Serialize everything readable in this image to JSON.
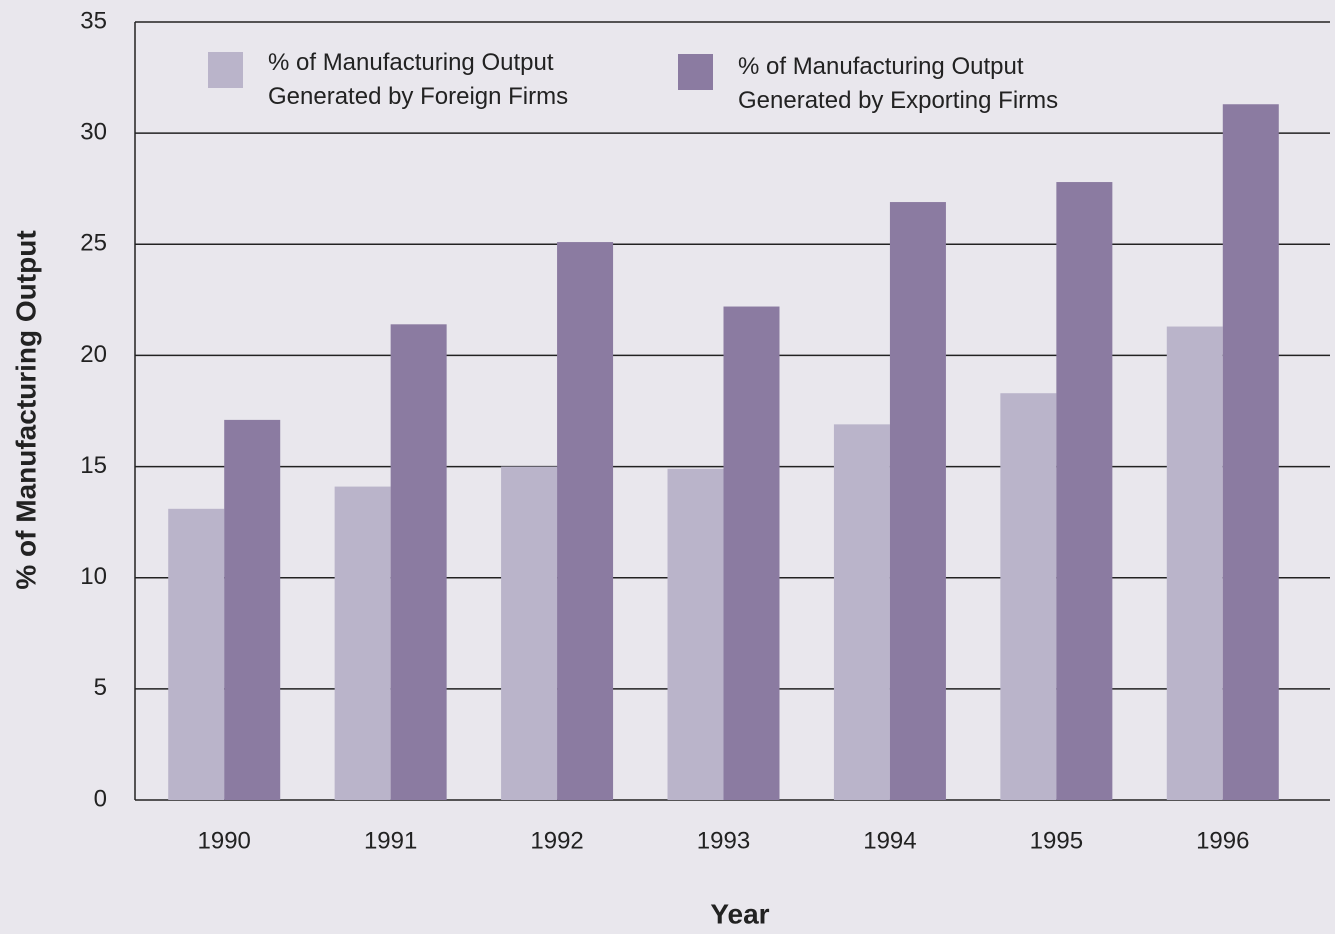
{
  "chart_data": {
    "type": "bar",
    "x_label": "Year",
    "y_label": "% of Manufacturing Output",
    "categories": [
      "1990",
      "1991",
      "1992",
      "1993",
      "1994",
      "1995",
      "1996"
    ],
    "series": [
      {
        "name": "% of Manufacturing Output Generated by Foreign Firms",
        "color": "#bab4ca",
        "values": [
          13.1,
          14.1,
          15,
          14.9,
          16.9,
          18.3,
          21.3
        ]
      },
      {
        "name": "% of Manufacturing Output Generated by Exporting Firms",
        "color": "#8b7ba1",
        "values": [
          17.1,
          21.4,
          25.1,
          22.2,
          26.9,
          27.8,
          31.3
        ]
      }
    ],
    "ylim": [
      0,
      35
    ],
    "yticks": [
      0,
      5,
      10,
      15,
      20,
      25,
      30,
      35
    ],
    "grid": true
  }
}
